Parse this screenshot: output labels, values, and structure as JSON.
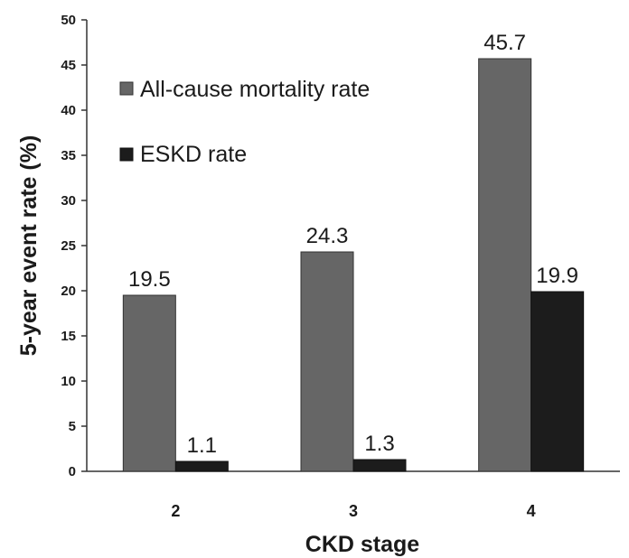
{
  "chart_data": {
    "type": "bar",
    "title": "",
    "xlabel": "CKD stage",
    "ylabel": "5-year event rate (%)",
    "ylim": [
      0,
      50
    ],
    "yticks": [
      0,
      5,
      10,
      15,
      20,
      25,
      30,
      35,
      40,
      45,
      50
    ],
    "categories": [
      "2",
      "3",
      "4"
    ],
    "series": [
      {
        "name": "All-cause mortality rate",
        "values": [
          19.5,
          24.3,
          45.7
        ],
        "labels": [
          "19.5",
          "24.3",
          "45.7"
        ],
        "color": "#666666"
      },
      {
        "name": "ESKD rate",
        "values": [
          1.1,
          1.3,
          19.9
        ],
        "labels": [
          "1.1",
          "1.3",
          "19.9"
        ],
        "color": "#1c1c1c"
      }
    ],
    "legend_position": "top-left",
    "grid": false
  }
}
